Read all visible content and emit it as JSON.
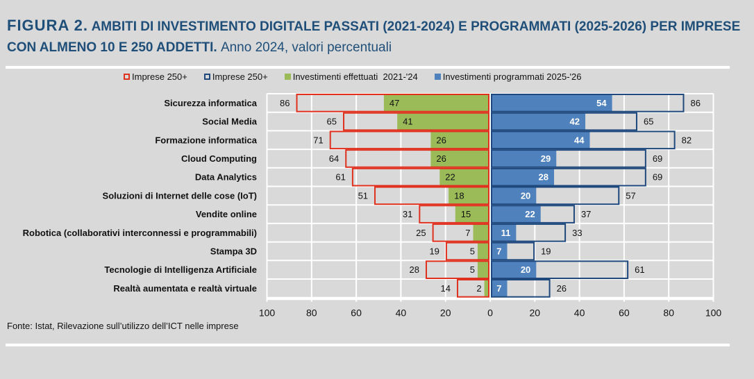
{
  "title": {
    "figure": "FIGURA 2.",
    "main": "AMBITI DI INVESTIMENTO DIGITALE PASSATI (2021-2024) E PROGRAMMATI (2025-2026) PER IMPRESE CON ALMENO 10 E 250 ADDETTI.",
    "subtitle": "Anno 2024, valori percentuali"
  },
  "source": "Fonte: Istat, Rilevazione sull’utilizzo dell’ICT nelle imprese",
  "colors": {
    "red_outline": "#e0301e",
    "green": "#9bbb59",
    "blue": "#4f81bd",
    "dark_blue_outline": "#1f497d",
    "plot_bg": "#d9d9d9"
  },
  "chart_data": {
    "type": "bar",
    "orientation": "horizontal butterfly",
    "legend_position": "top",
    "grid": true,
    "xlim": [
      -100,
      100
    ],
    "x_ticks": [
      "100",
      "80",
      "60",
      "40",
      "20",
      "0",
      "20",
      "40",
      "60",
      "80",
      "100"
    ],
    "legend": [
      "Imprese 250+",
      "Imprese 250+",
      "Investimenti effettuati  2021-'24",
      "Investimenti programmati 2025-'26"
    ],
    "categories": [
      "Sicurezza informatica",
      "Social Media",
      "Formazione informatica",
      "Cloud Computing",
      "Data Analytics",
      "Soluzioni di Internet delle cose (IoT)",
      "Vendite online",
      "Robotica (collaborativi interconnessi e programmabili)",
      "Stampa 3D",
      "Tecnologie di Intelligenza Artificiale",
      "Realtà aumentata e realtà virtuale"
    ],
    "series": [
      {
        "name": "Imprese 250+",
        "side": "left",
        "style": "outline-red",
        "values": [
          86,
          65,
          71,
          64,
          61,
          51,
          31,
          25,
          19,
          28,
          14
        ]
      },
      {
        "name": "Investimenti effettuati  2021-'24",
        "side": "left",
        "style": "fill-green",
        "values": [
          47,
          41,
          26,
          26,
          22,
          18,
          15,
          7,
          5,
          5,
          2
        ]
      },
      {
        "name": "Investimenti programmati 2025-'26",
        "side": "right",
        "style": "fill-blue",
        "values": [
          54,
          42,
          44,
          29,
          28,
          20,
          22,
          11,
          7,
          20,
          7
        ]
      },
      {
        "name": "Imprese 250+",
        "side": "right",
        "style": "outline-darkblue",
        "values": [
          86,
          65,
          82,
          69,
          69,
          57,
          37,
          33,
          19,
          61,
          26
        ]
      }
    ]
  }
}
